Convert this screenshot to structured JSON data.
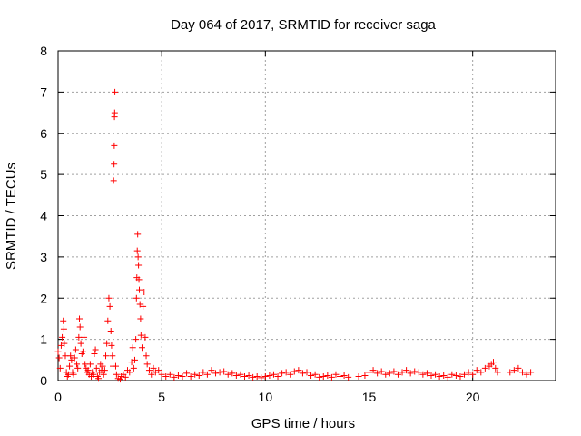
{
  "chart_data": {
    "type": "scatter",
    "title": "Day 064 of 2017, SRMTID for receiver saga",
    "xlabel": "GPS time / hours",
    "ylabel": "SRMTID / TECUs",
    "xlim": [
      0,
      24
    ],
    "ylim": [
      0,
      8
    ],
    "xticks": [
      "0",
      "5",
      "10",
      "15",
      "20"
    ],
    "yticks": [
      "0",
      "1",
      "2",
      "3",
      "4",
      "5",
      "6",
      "7",
      "8"
    ],
    "grid": true,
    "marker": "+",
    "color": "#ff0000",
    "series": [
      {
        "name": "SRMTID",
        "points": [
          [
            0.0,
            0.7
          ],
          [
            0.05,
            0.55
          ],
          [
            0.1,
            0.3
          ],
          [
            0.15,
            0.85
          ],
          [
            0.2,
            1.05
          ],
          [
            0.25,
            1.45
          ],
          [
            0.28,
            1.25
          ],
          [
            0.3,
            0.9
          ],
          [
            0.35,
            0.6
          ],
          [
            0.4,
            0.2
          ],
          [
            0.45,
            0.1
          ],
          [
            0.5,
            0.15
          ],
          [
            0.55,
            0.35
          ],
          [
            0.6,
            0.6
          ],
          [
            0.65,
            0.5
          ],
          [
            0.7,
            0.2
          ],
          [
            0.75,
            0.15
          ],
          [
            0.8,
            0.55
          ],
          [
            0.85,
            0.75
          ],
          [
            0.9,
            0.4
          ],
          [
            0.95,
            0.3
          ],
          [
            1.0,
            1.05
          ],
          [
            1.03,
            1.5
          ],
          [
            1.06,
            1.3
          ],
          [
            1.1,
            0.9
          ],
          [
            1.15,
            0.65
          ],
          [
            1.2,
            0.7
          ],
          [
            1.25,
            1.05
          ],
          [
            1.3,
            0.4
          ],
          [
            1.35,
            0.3
          ],
          [
            1.4,
            0.2
          ],
          [
            1.45,
            0.25
          ],
          [
            1.5,
            0.15
          ],
          [
            1.55,
            0.4
          ],
          [
            1.6,
            0.1
          ],
          [
            1.65,
            0.2
          ],
          [
            1.7,
            0.15
          ],
          [
            1.75,
            0.65
          ],
          [
            1.8,
            0.75
          ],
          [
            1.85,
            0.3
          ],
          [
            1.9,
            0.1
          ],
          [
            1.95,
            0.05
          ],
          [
            2.0,
            0.2
          ],
          [
            2.05,
            0.4
          ],
          [
            2.1,
            0.25
          ],
          [
            2.15,
            0.35
          ],
          [
            2.2,
            0.15
          ],
          [
            2.25,
            0.25
          ],
          [
            2.3,
            0.6
          ],
          [
            2.35,
            0.9
          ],
          [
            2.4,
            1.45
          ],
          [
            2.45,
            2.0
          ],
          [
            2.5,
            1.8
          ],
          [
            2.55,
            1.2
          ],
          [
            2.58,
            0.85
          ],
          [
            2.62,
            0.6
          ],
          [
            2.65,
            0.35
          ],
          [
            2.68,
            4.85
          ],
          [
            2.7,
            5.25
          ],
          [
            2.71,
            5.7
          ],
          [
            2.72,
            6.4
          ],
          [
            2.73,
            6.5
          ],
          [
            2.74,
            7.0
          ],
          [
            2.78,
            0.35
          ],
          [
            2.82,
            0.15
          ],
          [
            2.9,
            0.05
          ],
          [
            3.0,
            0.03
          ],
          [
            3.05,
            0.1
          ],
          [
            3.15,
            0.15
          ],
          [
            3.25,
            0.08
          ],
          [
            3.35,
            0.25
          ],
          [
            3.45,
            0.2
          ],
          [
            3.55,
            0.45
          ],
          [
            3.6,
            0.8
          ],
          [
            3.65,
            0.3
          ],
          [
            3.7,
            0.5
          ],
          [
            3.75,
            1.0
          ],
          [
            3.78,
            2.0
          ],
          [
            3.8,
            2.5
          ],
          [
            3.82,
            3.15
          ],
          [
            3.84,
            3.55
          ],
          [
            3.86,
            3.0
          ],
          [
            3.88,
            2.8
          ],
          [
            3.9,
            2.45
          ],
          [
            3.92,
            2.2
          ],
          [
            3.95,
            1.85
          ],
          [
            3.98,
            1.5
          ],
          [
            4.0,
            1.1
          ],
          [
            4.05,
            0.8
          ],
          [
            4.1,
            1.8
          ],
          [
            4.15,
            2.15
          ],
          [
            4.2,
            1.05
          ],
          [
            4.25,
            0.6
          ],
          [
            4.3,
            0.4
          ],
          [
            4.4,
            0.25
          ],
          [
            4.5,
            0.15
          ],
          [
            4.6,
            0.3
          ],
          [
            4.7,
            0.2
          ],
          [
            4.85,
            0.25
          ],
          [
            5.0,
            0.15
          ],
          [
            5.2,
            0.1
          ],
          [
            5.4,
            0.15
          ],
          [
            5.6,
            0.08
          ],
          [
            5.8,
            0.12
          ],
          [
            6.0,
            0.1
          ],
          [
            6.2,
            0.18
          ],
          [
            6.4,
            0.1
          ],
          [
            6.6,
            0.15
          ],
          [
            6.8,
            0.12
          ],
          [
            7.0,
            0.2
          ],
          [
            7.2,
            0.15
          ],
          [
            7.4,
            0.25
          ],
          [
            7.6,
            0.18
          ],
          [
            7.8,
            0.2
          ],
          [
            8.0,
            0.22
          ],
          [
            8.2,
            0.15
          ],
          [
            8.4,
            0.18
          ],
          [
            8.6,
            0.12
          ],
          [
            8.8,
            0.15
          ],
          [
            9.0,
            0.1
          ],
          [
            9.2,
            0.12
          ],
          [
            9.4,
            0.08
          ],
          [
            9.6,
            0.1
          ],
          [
            9.8,
            0.07
          ],
          [
            10.0,
            0.1
          ],
          [
            10.2,
            0.12
          ],
          [
            10.4,
            0.15
          ],
          [
            10.6,
            0.1
          ],
          [
            10.8,
            0.18
          ],
          [
            11.0,
            0.2
          ],
          [
            11.2,
            0.15
          ],
          [
            11.4,
            0.22
          ],
          [
            11.6,
            0.25
          ],
          [
            11.8,
            0.18
          ],
          [
            12.0,
            0.2
          ],
          [
            12.2,
            0.12
          ],
          [
            12.4,
            0.15
          ],
          [
            12.6,
            0.08
          ],
          [
            12.8,
            0.1
          ],
          [
            13.0,
            0.12
          ],
          [
            13.2,
            0.08
          ],
          [
            13.4,
            0.15
          ],
          [
            13.6,
            0.1
          ],
          [
            13.8,
            0.12
          ],
          [
            14.0,
            0.08
          ],
          [
            14.5,
            0.1
          ],
          [
            14.8,
            0.12
          ],
          [
            15.0,
            0.2
          ],
          [
            15.2,
            0.25
          ],
          [
            15.4,
            0.18
          ],
          [
            15.6,
            0.22
          ],
          [
            15.8,
            0.15
          ],
          [
            16.0,
            0.18
          ],
          [
            16.2,
            0.22
          ],
          [
            16.4,
            0.15
          ],
          [
            16.6,
            0.2
          ],
          [
            16.8,
            0.25
          ],
          [
            17.0,
            0.18
          ],
          [
            17.2,
            0.22
          ],
          [
            17.4,
            0.2
          ],
          [
            17.6,
            0.15
          ],
          [
            17.8,
            0.18
          ],
          [
            18.0,
            0.12
          ],
          [
            18.2,
            0.15
          ],
          [
            18.4,
            0.1
          ],
          [
            18.6,
            0.12
          ],
          [
            18.8,
            0.08
          ],
          [
            19.0,
            0.15
          ],
          [
            19.2,
            0.12
          ],
          [
            19.4,
            0.1
          ],
          [
            19.6,
            0.15
          ],
          [
            19.8,
            0.2
          ],
          [
            20.0,
            0.15
          ],
          [
            20.2,
            0.25
          ],
          [
            20.4,
            0.2
          ],
          [
            20.6,
            0.3
          ],
          [
            20.8,
            0.35
          ],
          [
            20.9,
            0.4
          ],
          [
            21.0,
            0.45
          ],
          [
            21.1,
            0.3
          ],
          [
            21.2,
            0.2
          ],
          [
            21.8,
            0.2
          ],
          [
            22.0,
            0.25
          ],
          [
            22.2,
            0.3
          ],
          [
            22.4,
            0.2
          ],
          [
            22.6,
            0.15
          ],
          [
            22.8,
            0.2
          ]
        ]
      }
    ]
  }
}
